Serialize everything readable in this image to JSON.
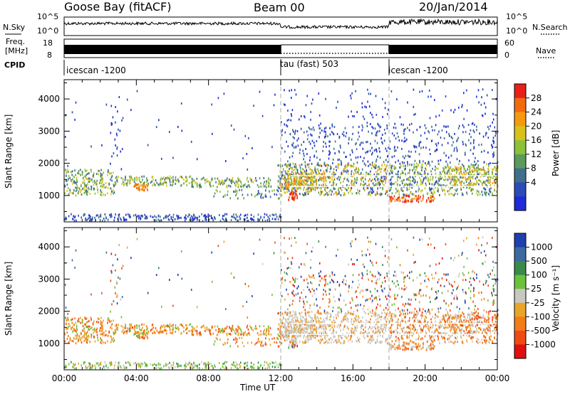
{
  "header": {
    "station": "Goose Bay (fitACF)",
    "beam": "Beam 00",
    "date": "20/Jan/2014"
  },
  "top_strip": {
    "nsky_label": "N.Sky",
    "nsearch_label": "N.Search",
    "nsky_ticks": [
      "10^5",
      "10^0"
    ],
    "nsearch_ticks": [
      "10^5",
      "10^0"
    ],
    "freq_label": "Freq.",
    "freq_unit": "[MHz]",
    "freq_ticks": [
      "18",
      "8"
    ],
    "nave_label": "Nave",
    "nave_ticks": [
      "60",
      "0"
    ],
    "cpid_label": "CPID",
    "cpid_segments": [
      {
        "name": "icescan -1200",
        "start": 0,
        "end": 12
      },
      {
        "name": "tau (fast) 503",
        "start": 12,
        "end": 18
      },
      {
        "name": "icescan -1200",
        "start": 18,
        "end": 24
      }
    ]
  },
  "chart_data": [
    {
      "type": "heatmap",
      "panel": "power",
      "ylabel": "Slant Range [km]",
      "yticks": [
        1000,
        2000,
        3000,
        4000
      ],
      "ylim": [
        180,
        4600
      ],
      "xlim": [
        0,
        24
      ],
      "colorbar": {
        "label": "Power [dB]",
        "ticks": [
          "4",
          "8",
          "12",
          "16",
          "20",
          "24",
          "28"
        ],
        "colors": [
          "#1f2bd6",
          "#2b4bb8",
          "#3f6f8c",
          "#5a9a5a",
          "#8cc13a",
          "#d8c21a",
          "#f59a10",
          "#f26a10",
          "#e8201a"
        ]
      }
    },
    {
      "type": "heatmap",
      "panel": "velocity",
      "ylabel": "Slant Range [km]",
      "yticks": [
        1000,
        2000,
        3000,
        4000
      ],
      "ylim": [
        180,
        4600
      ],
      "xlim": [
        0,
        24
      ],
      "xlabel": "Time UT",
      "xticks": [
        "00:00",
        "04:00",
        "08:00",
        "12:00",
        "16:00",
        "20:00",
        "00:00"
      ],
      "colorbar": {
        "label": "Velocity [m s⁻¹]",
        "ticks": [
          "1000",
          "500",
          "100",
          "25",
          "-25",
          "-100",
          "-500",
          "-1000"
        ],
        "colors": [
          "#1f3fb0",
          "#3a6aa0",
          "#3a8a4a",
          "#6cc23a",
          "#c8c8c0",
          "#e8a52a",
          "#f27c18",
          "#f04a14",
          "#e01010"
        ]
      }
    }
  ]
}
